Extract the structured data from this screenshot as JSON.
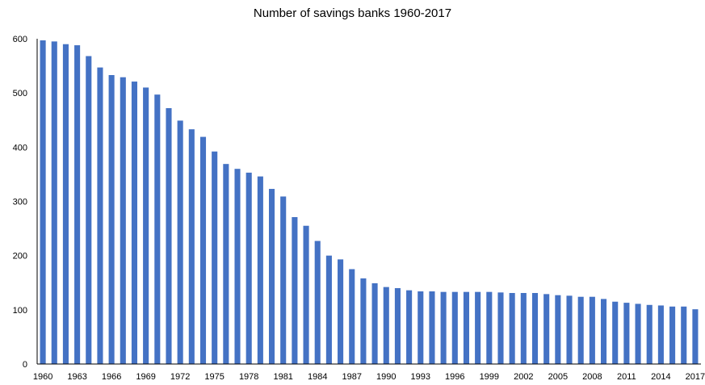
{
  "chart_data": {
    "type": "bar",
    "title": "Number of savings banks 1960-2017",
    "xlabel": "",
    "ylabel": "",
    "ylim": [
      0,
      600
    ],
    "yticks": [
      0,
      100,
      200,
      300,
      400,
      500,
      600
    ],
    "grid": false,
    "legend": "none",
    "bar_color": "#4472C4",
    "categories": [
      "1960",
      "1961",
      "1962",
      "1963",
      "1964",
      "1965",
      "1966",
      "1967",
      "1968",
      "1969",
      "1970",
      "1971",
      "1972",
      "1973",
      "1974",
      "1975",
      "1976",
      "1977",
      "1978",
      "1979",
      "1980",
      "1981",
      "1982",
      "1983",
      "1984",
      "1985",
      "1986",
      "1987",
      "1988",
      "1989",
      "1990",
      "1991",
      "1992",
      "1993",
      "1994",
      "1995",
      "1996",
      "1997",
      "1998",
      "1999",
      "2000",
      "2001",
      "2002",
      "2003",
      "2004",
      "2005",
      "2006",
      "2007",
      "2008",
      "2009",
      "2010",
      "2011",
      "2012",
      "2013",
      "2014",
      "2015",
      "2016",
      "2017"
    ],
    "xtick_labels": [
      "1960",
      "1963",
      "1966",
      "1969",
      "1972",
      "1975",
      "1978",
      "1981",
      "1984",
      "1987",
      "1990",
      "1993",
      "1996",
      "1999",
      "2002",
      "2005",
      "2008",
      "2011",
      "2014",
      "2017"
    ],
    "values": [
      597,
      595,
      590,
      588,
      568,
      547,
      533,
      529,
      521,
      510,
      497,
      472,
      449,
      433,
      419,
      392,
      369,
      360,
      353,
      346,
      323,
      309,
      271,
      255,
      227,
      200,
      193,
      175,
      158,
      149,
      142,
      140,
      136,
      134,
      134,
      133,
      133,
      133,
      133,
      133,
      132,
      131,
      131,
      131,
      129,
      127,
      126,
      124,
      124,
      120,
      115,
      113,
      111,
      109,
      108,
      106,
      106,
      101
    ]
  }
}
